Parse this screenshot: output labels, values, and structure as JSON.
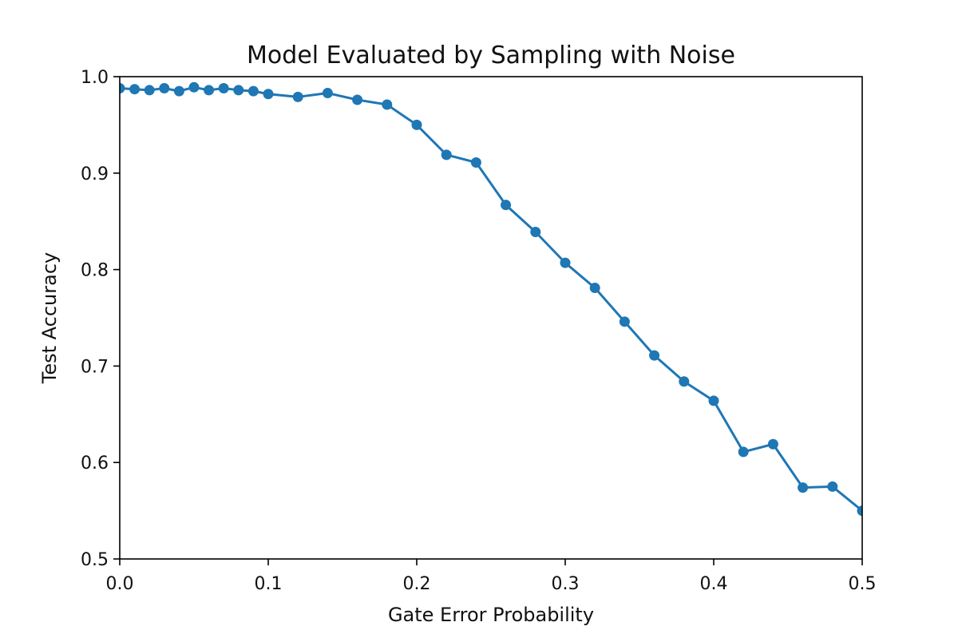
{
  "chart_data": {
    "type": "line",
    "title": "Model Evaluated by Sampling with Noise",
    "xlabel": "Gate Error Probability",
    "ylabel": "Test Accuracy",
    "xlim": [
      0.0,
      0.5
    ],
    "ylim": [
      0.5,
      1.0
    ],
    "xticks": [
      "0.0",
      "0.1",
      "0.2",
      "0.3",
      "0.4",
      "0.5"
    ],
    "yticks": [
      "0.5",
      "0.6",
      "0.7",
      "0.8",
      "0.9",
      "1.0"
    ],
    "grid": false,
    "legend": null,
    "series": [
      {
        "color": "#1f77b4",
        "marker": "circle",
        "x": [
          0.0,
          0.01,
          0.02,
          0.03,
          0.04,
          0.05,
          0.06,
          0.07,
          0.08,
          0.09,
          0.1,
          0.12,
          0.14,
          0.16,
          0.18,
          0.2,
          0.22,
          0.24,
          0.26,
          0.28,
          0.3,
          0.32,
          0.34,
          0.36,
          0.38,
          0.4,
          0.42,
          0.44,
          0.46,
          0.48,
          0.5
        ],
        "y": [
          0.988,
          0.987,
          0.986,
          0.988,
          0.985,
          0.989,
          0.986,
          0.988,
          0.986,
          0.985,
          0.982,
          0.979,
          0.983,
          0.976,
          0.971,
          0.95,
          0.919,
          0.911,
          0.867,
          0.839,
          0.807,
          0.781,
          0.746,
          0.711,
          0.684,
          0.664,
          0.611,
          0.619,
          0.574,
          0.575,
          0.55
        ]
      }
    ]
  }
}
